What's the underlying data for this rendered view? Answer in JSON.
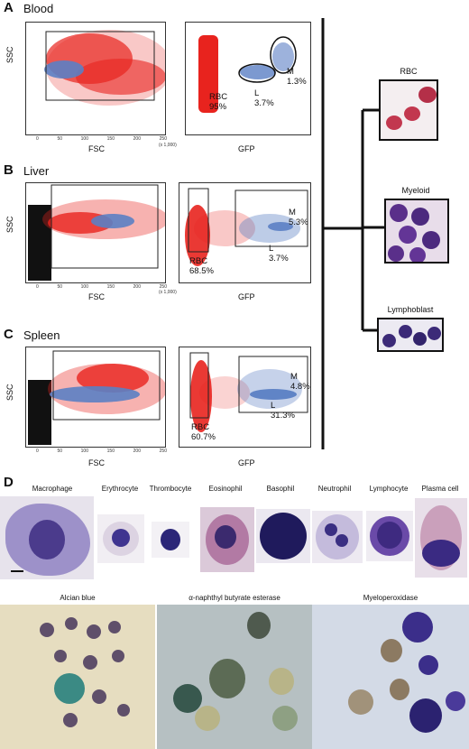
{
  "panelA": {
    "letter": "A",
    "title": "Blood",
    "xlabel_left": "FSC",
    "ylabel": "SSC",
    "xlabel_right": "GFP",
    "rbc": "RBC",
    "rbc_pct": "95%",
    "l": "L",
    "l_pct": "3.7%",
    "m": "M",
    "m_pct": "1.3%"
  },
  "panelB": {
    "letter": "B",
    "title": "Liver",
    "xlabel_left": "FSC",
    "ylabel": "SSC",
    "xlabel_right": "GFP",
    "rbc": "RBC",
    "rbc_pct": "68.5%",
    "l": "L",
    "l_pct": "3.7%",
    "m": "M",
    "m_pct": "5.3%"
  },
  "panelC": {
    "letter": "C",
    "title": "Spleen",
    "xlabel_left": "FSC",
    "ylabel": "SSC",
    "xlabel_right": "GFP",
    "rbc": "RBC",
    "rbc_pct": "60.7%",
    "l": "L",
    "l_pct": "31.3%",
    "m": "M",
    "m_pct": "4.8%"
  },
  "fsc_ticks": [
    "0",
    "50",
    "100",
    "150",
    "200",
    "250"
  ],
  "fsc_unit": "(x 1,000)",
  "micrographs": {
    "rbc": "RBC",
    "myeloid": "Myeloid",
    "lymphoblast": "Lymphoblast"
  },
  "panelD": {
    "letter": "D",
    "cells": [
      "Macrophage",
      "Erythrocyte",
      "Thrombocyte",
      "Eosinophil",
      "Basophil",
      "Neutrophil",
      "Lymphocyte",
      "Plasma cell"
    ],
    "stains": [
      "Alcian blue",
      "α-naphthyl butyrate esterase",
      "Myeloperoxidase"
    ]
  },
  "colors": {
    "rbc": "#e8231e",
    "leuko": "#5b7fc4",
    "debris": "#111111"
  }
}
